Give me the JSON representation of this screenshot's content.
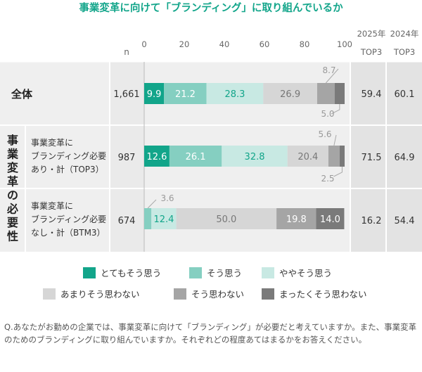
{
  "chart_data": {
    "type": "bar",
    "orientation": "horizontal",
    "stacked": true,
    "title": "事業変革に向けて「ブランディング」に取り組んでいるか",
    "n_header": "n",
    "x_ticks": [
      "0",
      "20",
      "40",
      "60",
      "80",
      "100"
    ],
    "xlim": [
      0,
      100
    ],
    "col_2025": [
      "2025年",
      "TOP3"
    ],
    "col_2024": [
      "2024年",
      "TOP3"
    ],
    "group_label": "事業変革の必要性",
    "rows": [
      {
        "label": [
          "全体"
        ],
        "n": "1,661",
        "values": [
          9.9,
          21.2,
          28.3,
          26.9,
          8.7,
          5.0
        ],
        "top3_2025": "59.4",
        "top3_2024": "60.1"
      },
      {
        "label": [
          "事業変革に",
          "ブランディング必要",
          "あり・計（TOP3）"
        ],
        "n": "987",
        "values": [
          12.6,
          26.1,
          32.8,
          20.4,
          5.6,
          2.5
        ],
        "top3_2025": "71.5",
        "top3_2024": "64.9"
      },
      {
        "label": [
          "事業変革に",
          "ブランディング必要",
          "なし・計（BTM3）"
        ],
        "n": "674",
        "values": [
          0.0,
          3.6,
          12.4,
          50.0,
          19.8,
          14.0
        ],
        "top3_2025": "16.2",
        "top3_2024": "54.4"
      }
    ],
    "series": [
      {
        "name": "とてもそう思う",
        "color": "#12a58a",
        "label_color": "#ffffff"
      },
      {
        "name": "そう思う",
        "color": "#85cfc1",
        "label_color": "#ffffff"
      },
      {
        "name": "ややそう思う",
        "color": "#c8e9e3",
        "label_color": "#12a58a"
      },
      {
        "name": "あまりそう思わない",
        "color": "#d6d6d6",
        "label_color": "#777777"
      },
      {
        "name": "そう思わない",
        "color": "#a5a5a5",
        "label_color": "#ffffff"
      },
      {
        "name": "まったくそう思わない",
        "color": "#7a7a7a",
        "label_color": "#ffffff"
      }
    ],
    "external_labels": [
      "8.7",
      "5.0",
      "5.6",
      "2.5",
      "3.6"
    ]
  },
  "question": "Q.あなたがお勤めの企業では、事業変革に向けて「ブランディング」が必要だと考えていますか。また、事業変革のためのブランディングに取り組んでいますか。それぞれどの程度あてはまるかをお答えください。"
}
